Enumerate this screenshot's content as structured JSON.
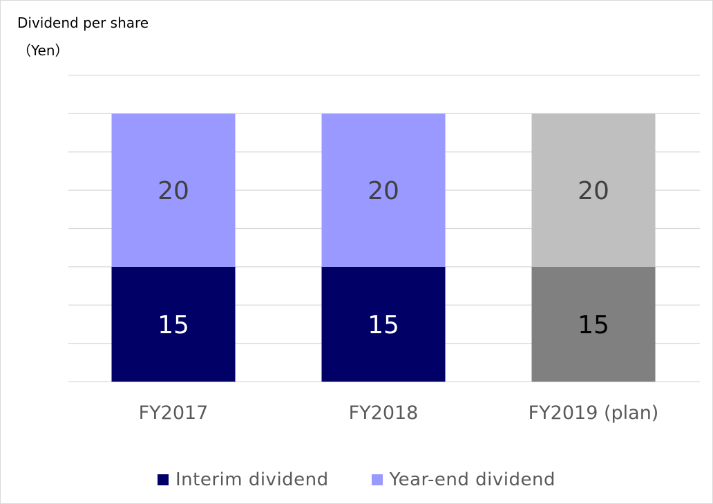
{
  "chart_data": {
    "type": "bar",
    "stacked": true,
    "ylabel_lines": [
      "Dividend per share",
      "（Yen）"
    ],
    "categories": [
      "FY2017",
      "FY2018",
      "FY2019 (plan)"
    ],
    "ylim": [
      0,
      40
    ],
    "grid": true,
    "legend_position": "bottom",
    "series": [
      {
        "name": "Interim dividend",
        "values": [
          15,
          15,
          15
        ],
        "colors": [
          "#000066",
          "#000066",
          "#808080"
        ],
        "label_colors": [
          "#ffffff",
          "#ffffff",
          "#000000"
        ]
      },
      {
        "name": "Year-end dividend",
        "values": [
          20,
          20,
          20
        ],
        "colors": [
          "#9999ff",
          "#9999ff",
          "#bfbfbf"
        ],
        "label_colors": [
          "#404040",
          "#404040",
          "#404040"
        ]
      }
    ]
  },
  "colors": {
    "gridline": "#d9d9d9",
    "axis_text": "#595959"
  }
}
